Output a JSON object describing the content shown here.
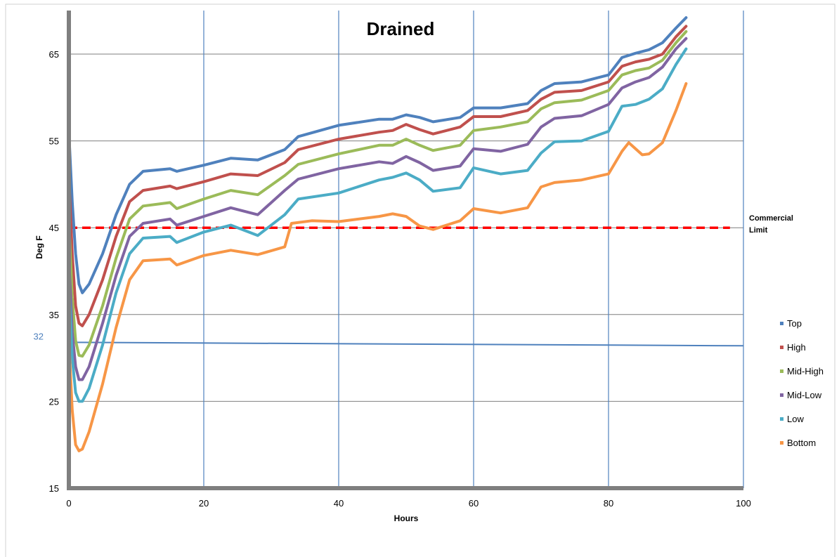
{
  "chart_data": {
    "type": "line",
    "title": "Drained",
    "xlabel": "Hours",
    "ylabel": "Deg F",
    "xlim": [
      0,
      100
    ],
    "ylim": [
      15,
      69
    ],
    "x_ticks": [
      0,
      20,
      40,
      60,
      80,
      100
    ],
    "y_ticks": [
      15,
      25,
      35,
      45,
      55,
      65
    ],
    "grid": true,
    "legend_position": "right",
    "reference_lines": [
      {
        "name": "commercial-limit",
        "y": 45,
        "x_end": 98,
        "label": [
          "Commercial",
          "Limit"
        ],
        "color": "#ff0000",
        "style": "dashed"
      },
      {
        "name": "freezing",
        "y_start": 31.8,
        "y_end": 31.4,
        "x_end": 100,
        "label": "32",
        "color": "#4f81bd",
        "style": "solid"
      }
    ],
    "series": [
      {
        "name": "Top",
        "color": "#4f81bd",
        "points": [
          [
            0,
            56
          ],
          [
            0.5,
            48
          ],
          [
            1,
            42
          ],
          [
            1.5,
            38.5
          ],
          [
            2,
            37.5
          ],
          [
            3,
            38.5
          ],
          [
            5,
            42
          ],
          [
            7,
            46.5
          ],
          [
            9,
            50
          ],
          [
            11,
            51.5
          ],
          [
            15,
            51.8
          ],
          [
            16,
            51.5
          ],
          [
            20,
            52.2
          ],
          [
            24,
            53
          ],
          [
            28,
            52.8
          ],
          [
            32,
            54
          ],
          [
            34,
            55.5
          ],
          [
            40,
            56.8
          ],
          [
            46,
            57.5
          ],
          [
            48,
            57.5
          ],
          [
            50,
            58
          ],
          [
            52,
            57.7
          ],
          [
            54,
            57.2
          ],
          [
            58,
            57.7
          ],
          [
            60,
            58.8
          ],
          [
            64,
            58.8
          ],
          [
            68,
            59.3
          ],
          [
            70,
            60.8
          ],
          [
            72,
            61.6
          ],
          [
            76,
            61.8
          ],
          [
            80,
            62.6
          ],
          [
            82,
            64.6
          ],
          [
            84,
            65.1
          ],
          [
            86,
            65.5
          ],
          [
            88,
            66.3
          ],
          [
            90,
            68
          ],
          [
            91.5,
            69.2
          ]
        ]
      },
      {
        "name": "High",
        "color": "#c0504d",
        "points": [
          [
            0,
            51
          ],
          [
            0.5,
            42
          ],
          [
            1,
            36
          ],
          [
            1.5,
            34
          ],
          [
            2,
            33.7
          ],
          [
            3,
            35
          ],
          [
            5,
            39
          ],
          [
            7,
            44
          ],
          [
            9,
            48
          ],
          [
            11,
            49.3
          ],
          [
            15,
            49.8
          ],
          [
            16,
            49.5
          ],
          [
            20,
            50.3
          ],
          [
            24,
            51.2
          ],
          [
            28,
            51
          ],
          [
            32,
            52.5
          ],
          [
            34,
            54
          ],
          [
            40,
            55.2
          ],
          [
            46,
            56
          ],
          [
            48,
            56.2
          ],
          [
            50,
            56.9
          ],
          [
            52,
            56.3
          ],
          [
            54,
            55.8
          ],
          [
            58,
            56.6
          ],
          [
            60,
            57.8
          ],
          [
            64,
            57.8
          ],
          [
            68,
            58.5
          ],
          [
            70,
            59.8
          ],
          [
            72,
            60.6
          ],
          [
            76,
            60.8
          ],
          [
            80,
            61.8
          ],
          [
            82,
            63.6
          ],
          [
            84,
            64.1
          ],
          [
            86,
            64.4
          ],
          [
            88,
            65
          ],
          [
            90,
            67
          ],
          [
            91.5,
            68.2
          ]
        ]
      },
      {
        "name": "Mid-High",
        "color": "#9bbb59",
        "points": [
          [
            0,
            46
          ],
          [
            0.5,
            37
          ],
          [
            1,
            32
          ],
          [
            1.5,
            30.3
          ],
          [
            2,
            30.2
          ],
          [
            3,
            31.5
          ],
          [
            5,
            36
          ],
          [
            7,
            41.5
          ],
          [
            9,
            46
          ],
          [
            11,
            47.5
          ],
          [
            15,
            47.9
          ],
          [
            16,
            47.2
          ],
          [
            20,
            48.3
          ],
          [
            24,
            49.3
          ],
          [
            28,
            48.8
          ],
          [
            32,
            51
          ],
          [
            34,
            52.3
          ],
          [
            40,
            53.5
          ],
          [
            46,
            54.5
          ],
          [
            48,
            54.5
          ],
          [
            50,
            55.2
          ],
          [
            52,
            54.5
          ],
          [
            54,
            53.9
          ],
          [
            58,
            54.5
          ],
          [
            60,
            56.2
          ],
          [
            64,
            56.6
          ],
          [
            68,
            57.2
          ],
          [
            70,
            58.7
          ],
          [
            72,
            59.4
          ],
          [
            76,
            59.7
          ],
          [
            80,
            60.8
          ],
          [
            82,
            62.6
          ],
          [
            84,
            63.1
          ],
          [
            86,
            63.4
          ],
          [
            88,
            64.3
          ],
          [
            90,
            66.3
          ],
          [
            91.5,
            67.6
          ]
        ]
      },
      {
        "name": "Mid-Low",
        "color": "#8064a2",
        "points": [
          [
            0,
            41.5
          ],
          [
            0.5,
            33
          ],
          [
            1,
            29
          ],
          [
            1.5,
            27.5
          ],
          [
            2,
            27.5
          ],
          [
            3,
            29
          ],
          [
            5,
            34
          ],
          [
            7,
            39.5
          ],
          [
            9,
            44
          ],
          [
            11,
            45.5
          ],
          [
            15,
            46
          ],
          [
            16,
            45.3
          ],
          [
            20,
            46.3
          ],
          [
            24,
            47.3
          ],
          [
            28,
            46.5
          ],
          [
            32,
            49.3
          ],
          [
            34,
            50.6
          ],
          [
            40,
            51.8
          ],
          [
            46,
            52.6
          ],
          [
            48,
            52.4
          ],
          [
            50,
            53.2
          ],
          [
            52,
            52.5
          ],
          [
            54,
            51.6
          ],
          [
            58,
            52.1
          ],
          [
            60,
            54.1
          ],
          [
            64,
            53.8
          ],
          [
            68,
            54.6
          ],
          [
            70,
            56.6
          ],
          [
            72,
            57.6
          ],
          [
            76,
            57.9
          ],
          [
            80,
            59.2
          ],
          [
            82,
            61.1
          ],
          [
            84,
            61.8
          ],
          [
            86,
            62.3
          ],
          [
            88,
            63.5
          ],
          [
            90,
            65.6
          ],
          [
            91.5,
            66.8
          ]
        ]
      },
      {
        "name": "Low",
        "color": "#4bacc6",
        "points": [
          [
            0,
            39
          ],
          [
            0.5,
            30
          ],
          [
            1,
            26
          ],
          [
            1.5,
            25
          ],
          [
            2,
            25
          ],
          [
            3,
            26.5
          ],
          [
            5,
            31.5
          ],
          [
            7,
            37.5
          ],
          [
            9,
            42
          ],
          [
            11,
            43.8
          ],
          [
            15,
            44
          ],
          [
            16,
            43.3
          ],
          [
            20,
            44.5
          ],
          [
            24,
            45.3
          ],
          [
            28,
            44.1
          ],
          [
            32,
            46.5
          ],
          [
            34,
            48.3
          ],
          [
            40,
            49
          ],
          [
            46,
            50.5
          ],
          [
            48,
            50.8
          ],
          [
            50,
            51.3
          ],
          [
            52,
            50.5
          ],
          [
            54,
            49.2
          ],
          [
            58,
            49.6
          ],
          [
            60,
            51.9
          ],
          [
            64,
            51.2
          ],
          [
            68,
            51.6
          ],
          [
            70,
            53.6
          ],
          [
            72,
            54.9
          ],
          [
            76,
            55
          ],
          [
            80,
            56.1
          ],
          [
            82,
            59
          ],
          [
            84,
            59.2
          ],
          [
            86,
            59.8
          ],
          [
            88,
            61
          ],
          [
            90,
            63.8
          ],
          [
            91.5,
            65.6
          ]
        ]
      },
      {
        "name": "Bottom",
        "color": "#f79646",
        "points": [
          [
            0,
            32
          ],
          [
            0.5,
            24
          ],
          [
            1,
            20
          ],
          [
            1.5,
            19.3
          ],
          [
            2,
            19.5
          ],
          [
            3,
            21.5
          ],
          [
            5,
            27
          ],
          [
            7,
            33.5
          ],
          [
            9,
            39
          ],
          [
            11,
            41.2
          ],
          [
            15,
            41.4
          ],
          [
            16,
            40.7
          ],
          [
            20,
            41.8
          ],
          [
            24,
            42.4
          ],
          [
            28,
            41.9
          ],
          [
            32,
            42.8
          ],
          [
            33,
            45.5
          ],
          [
            36,
            45.8
          ],
          [
            40,
            45.7
          ],
          [
            46,
            46.3
          ],
          [
            48,
            46.6
          ],
          [
            50,
            46.3
          ],
          [
            52,
            45.2
          ],
          [
            54,
            44.8
          ],
          [
            58,
            45.8
          ],
          [
            60,
            47.2
          ],
          [
            64,
            46.7
          ],
          [
            68,
            47.3
          ],
          [
            70,
            49.7
          ],
          [
            72,
            50.2
          ],
          [
            76,
            50.5
          ],
          [
            80,
            51.2
          ],
          [
            82,
            53.8
          ],
          [
            83,
            54.8
          ],
          [
            85,
            53.4
          ],
          [
            86,
            53.5
          ],
          [
            88,
            54.8
          ],
          [
            90,
            58.5
          ],
          [
            91.5,
            61.6
          ]
        ]
      }
    ]
  }
}
